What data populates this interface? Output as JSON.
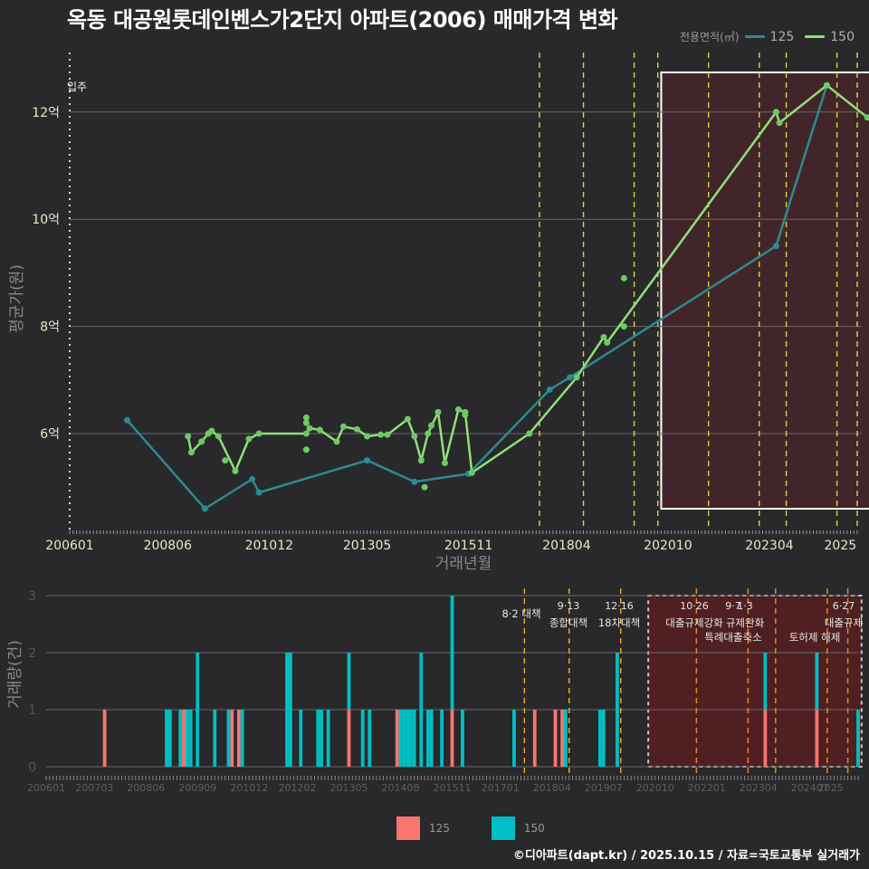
{
  "header": {
    "title": "옥동 대공원롯데인벤스가2단지 아파트(2006) 매매가격 변화"
  },
  "legend_top": {
    "title": "전용면적(㎡)",
    "items": [
      {
        "label": "125",
        "color": "#2e8a8f"
      },
      {
        "label": "150",
        "color": "#90e07a"
      }
    ]
  },
  "legend_bottom": {
    "items": [
      {
        "label": "125",
        "color": "#f8766d"
      },
      {
        "label": "150",
        "color": "#00bfc4"
      }
    ]
  },
  "footer": {
    "credit": "©디아파트(dapt.kr) / 2025.10.15 / 자료=국토교통부 실거래가"
  },
  "chart_data": [
    {
      "type": "line",
      "title": "옥동 대공원롯데인벤스가2단지 아파트(2006) 매매가격 변화",
      "xlabel": "거래년월",
      "ylabel": "평균가(원)",
      "x_tick_labels": [
        "200601",
        "200806",
        "201012",
        "201305",
        "201511",
        "201804",
        "202010",
        "202304",
        "2025"
      ],
      "y_tick_labels": [
        "6억",
        "8억",
        "10억",
        "12억"
      ],
      "ylim": [
        4.3,
        13.1
      ],
      "y_unit": "억",
      "grid": true,
      "legend_position": "top-right",
      "marker_label": "입주",
      "series": [
        {
          "name": "125",
          "color": "#2e8a8f",
          "points": [
            [
              "2007-06",
              6.25
            ],
            [
              "2009-05",
              4.6
            ],
            [
              "2010-07",
              5.15
            ],
            [
              "2010-09",
              4.9
            ],
            [
              "2013-05",
              5.5
            ],
            [
              "2014-07",
              5.1
            ],
            [
              "2015-11",
              5.25
            ],
            [
              "2017-11",
              6.82
            ],
            [
              "2018-05",
              7.05
            ],
            [
              "2023-06",
              9.5
            ],
            [
              "2024-09",
              12.5
            ]
          ]
        },
        {
          "name": "150",
          "color": "#90e07a",
          "points": [
            [
              "2008-12",
              5.95
            ],
            [
              "2009-01",
              5.65
            ],
            [
              "2009-04",
              5.85
            ],
            [
              "2009-06",
              6.0
            ],
            [
              "2009-07",
              6.05
            ],
            [
              "2009-09",
              5.95
            ],
            [
              "2010-02",
              5.3
            ],
            [
              "2010-06",
              5.9
            ],
            [
              "2010-09",
              6.0
            ],
            [
              "2011-11",
              6.0
            ],
            [
              "2011-12",
              6.1
            ],
            [
              "2012-03",
              6.07
            ],
            [
              "2012-08",
              5.85
            ],
            [
              "2012-10",
              6.13
            ],
            [
              "2013-02",
              6.08
            ],
            [
              "2013-05",
              5.95
            ],
            [
              "2013-09",
              5.98
            ],
            [
              "2013-11",
              5.98
            ],
            [
              "2014-05",
              6.27
            ],
            [
              "2014-07",
              5.95
            ],
            [
              "2014-09",
              5.5
            ],
            [
              "2014-11",
              6.0
            ],
            [
              "2015-02",
              6.4
            ],
            [
              "2015-04",
              5.45
            ],
            [
              "2015-08",
              6.45
            ],
            [
              "2015-10",
              6.4
            ],
            [
              "2015-12",
              5.27
            ],
            [
              "2017-05",
              6.0
            ],
            [
              "2018-07",
              7.05
            ],
            [
              "2019-03",
              7.8
            ],
            [
              "2019-04",
              7.7
            ],
            [
              "2023-06",
              12.0
            ],
            [
              "2023-07",
              11.8
            ],
            [
              "2024-09",
              12.5
            ],
            [
              "2025-09",
              11.9
            ]
          ],
          "extra_points": [
            [
              "2009-11",
              5.5
            ],
            [
              "2011-11",
              6.3
            ],
            [
              "2011-11",
              6.2
            ],
            [
              "2011-11",
              5.7
            ],
            [
              "2014-10",
              5.0
            ],
            [
              "2014-12",
              6.15
            ],
            [
              "2015-10",
              6.35
            ],
            [
              "2019-09",
              8.9
            ],
            [
              "2019-09",
              8.0
            ]
          ]
        }
      ],
      "policy_lines_x": [
        "2017-08",
        "2018-09",
        "2019-12",
        "2020-07",
        "2021-10",
        "2023-01",
        "2023-09",
        "2024-12",
        "2025-06"
      ],
      "highlight_range": [
        "2020-08",
        "2025-10"
      ]
    },
    {
      "type": "bar",
      "title": "",
      "xlabel": "",
      "ylabel": "거래량(건)",
      "x_tick_labels": [
        "200601",
        "200703",
        "200806",
        "200909",
        "201012",
        "201202",
        "201305",
        "201408",
        "201511",
        "201701",
        "201804",
        "201907",
        "202010",
        "202201",
        "202304",
        "202407",
        "2025"
      ],
      "y_tick_labels": [
        "0",
        "1",
        "2",
        "3"
      ],
      "ylim": [
        0,
        3
      ],
      "stacked": true,
      "grid": true,
      "legend_position": "bottom",
      "series": [
        {
          "name": "125",
          "color": "#f8766d",
          "bars": [
            [
              "2007-06",
              1
            ],
            [
              "2009-05",
              1
            ],
            [
              "2010-07",
              1
            ],
            [
              "2010-09",
              1
            ],
            [
              "2013-05",
              1
            ],
            [
              "2014-07",
              1
            ],
            [
              "2015-11",
              1
            ],
            [
              "2017-11",
              1
            ],
            [
              "2018-05",
              1
            ],
            [
              "2018-07",
              1
            ],
            [
              "2023-06",
              1
            ],
            [
              "2024-09",
              1
            ]
          ]
        },
        {
          "name": "150",
          "color": "#00bfc4",
          "bars": [
            [
              "2008-12",
              1
            ],
            [
              "2009-01",
              1
            ],
            [
              "2009-04",
              1
            ],
            [
              "2009-06",
              1
            ],
            [
              "2009-07",
              1
            ],
            [
              "2009-09",
              2
            ],
            [
              "2010-02",
              1
            ],
            [
              "2010-06",
              1
            ],
            [
              "2010-10",
              1
            ],
            [
              "2011-11",
              2
            ],
            [
              "2011-12",
              2
            ],
            [
              "2012-03",
              1
            ],
            [
              "2012-08",
              1
            ],
            [
              "2012-09",
              1
            ],
            [
              "2012-11",
              1
            ],
            [
              "2013-05",
              1
            ],
            [
              "2013-09",
              1
            ],
            [
              "2013-11",
              1
            ],
            [
              "2014-08",
              1
            ],
            [
              "2014-09",
              1
            ],
            [
              "2014-10",
              1
            ],
            [
              "2014-11",
              1
            ],
            [
              "2014-12",
              1
            ],
            [
              "2015-02",
              2
            ],
            [
              "2015-04",
              1
            ],
            [
              "2015-05",
              1
            ],
            [
              "2015-08",
              1
            ],
            [
              "2015-11",
              2
            ],
            [
              "2016-02",
              1
            ],
            [
              "2017-05",
              1
            ],
            [
              "2018-08",
              1
            ],
            [
              "2019-06",
              1
            ],
            [
              "2019-07",
              1
            ],
            [
              "2019-11",
              2
            ],
            [
              "2023-06",
              1
            ],
            [
              "2024-09",
              1
            ],
            [
              "2025-09",
              1
            ]
          ]
        }
      ],
      "annotations": [
        {
          "x": "2017-08",
          "date": "",
          "text": "8·2 대책"
        },
        {
          "x": "2018-09",
          "date": "9·13",
          "text": "종합대책"
        },
        {
          "x": "2019-12",
          "date": "12·16",
          "text": "18차대책"
        },
        {
          "x": "2021-10",
          "date": "10·26",
          "text": "대출규제강화"
        },
        {
          "x": "2023-01",
          "date": "1·3",
          "text": "규제완화"
        },
        {
          "x": "2023-09",
          "date": "9·7",
          "text": "특례대출축소"
        },
        {
          "x": "2024-12",
          "date": "",
          "text": "토허제 해제"
        },
        {
          "x": "2025-06",
          "date": "6·27",
          "text": "대출규제"
        }
      ],
      "highlight_range": [
        "2020-08",
        "2025-10"
      ]
    }
  ]
}
